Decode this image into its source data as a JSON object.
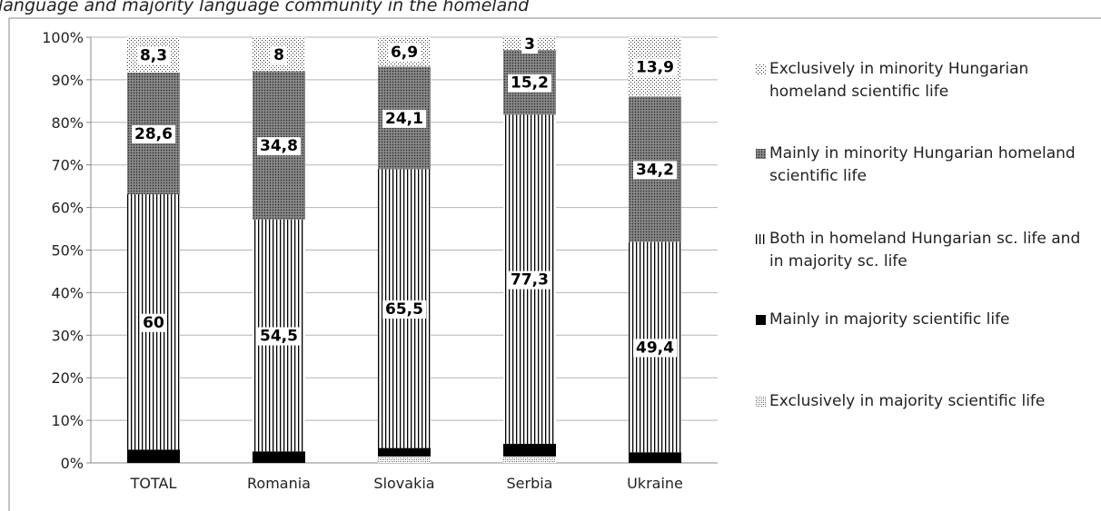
{
  "chart_data": {
    "type": "stacked-bar",
    "title": "language and majority language community in the homeland",
    "categories": [
      "TOTAL",
      "Romania",
      "Slovakia",
      "Serbia",
      "Ukraine"
    ],
    "series": [
      {
        "name": "Exclusively in majority scientific life",
        "color": "#000000",
        "pattern": "fine-dots",
        "values": [
          0,
          0,
          1.5,
          1.5,
          0
        ]
      },
      {
        "name": "Mainly in majority scientific life",
        "color": "#000000",
        "pattern": "solid",
        "values": [
          3.1,
          2.7,
          2.0,
          3.0,
          2.5
        ]
      },
      {
        "name": "Both in homeland Hungarian sc. life and in majority sc. life",
        "color": "#000000",
        "pattern": "vertical-lines",
        "values": [
          60,
          54.5,
          65.5,
          77.3,
          49.4
        ],
        "value_labels": [
          "60",
          "54,5",
          "65,5",
          "77,3",
          "49,4"
        ]
      },
      {
        "name": "Mainly in minority Hungarian homeland scientific life",
        "color": "#000000",
        "pattern": "crosshatch",
        "values": [
          28.6,
          34.8,
          24.1,
          15.2,
          34.2
        ],
        "value_labels": [
          "28,6",
          "34,8",
          "24,1",
          "15,2",
          "34,2"
        ]
      },
      {
        "name": "Exclusively in minority Hungarian homeland scientific life",
        "color": "#000000",
        "pattern": "sparse-dots",
        "values": [
          8.3,
          8,
          6.9,
          3,
          13.9
        ],
        "value_labels": [
          "8,3",
          "8",
          "6,9",
          "3",
          "13,9"
        ]
      }
    ],
    "ylim": [
      0,
      100
    ],
    "yticks": [
      {
        "value": 0,
        "label": "0%"
      },
      {
        "value": 10,
        "label": "10%"
      },
      {
        "value": 20,
        "label": "20%"
      },
      {
        "value": 30,
        "label": "30%"
      },
      {
        "value": 40,
        "label": "40%"
      },
      {
        "value": 50,
        "label": "50%"
      },
      {
        "value": 60,
        "label": "60%"
      },
      {
        "value": 70,
        "label": "70%"
      },
      {
        "value": 80,
        "label": "80%"
      },
      {
        "value": 90,
        "label": "90%"
      },
      {
        "value": 100,
        "label": "100%"
      }
    ],
    "grid": true,
    "legend": "right"
  }
}
